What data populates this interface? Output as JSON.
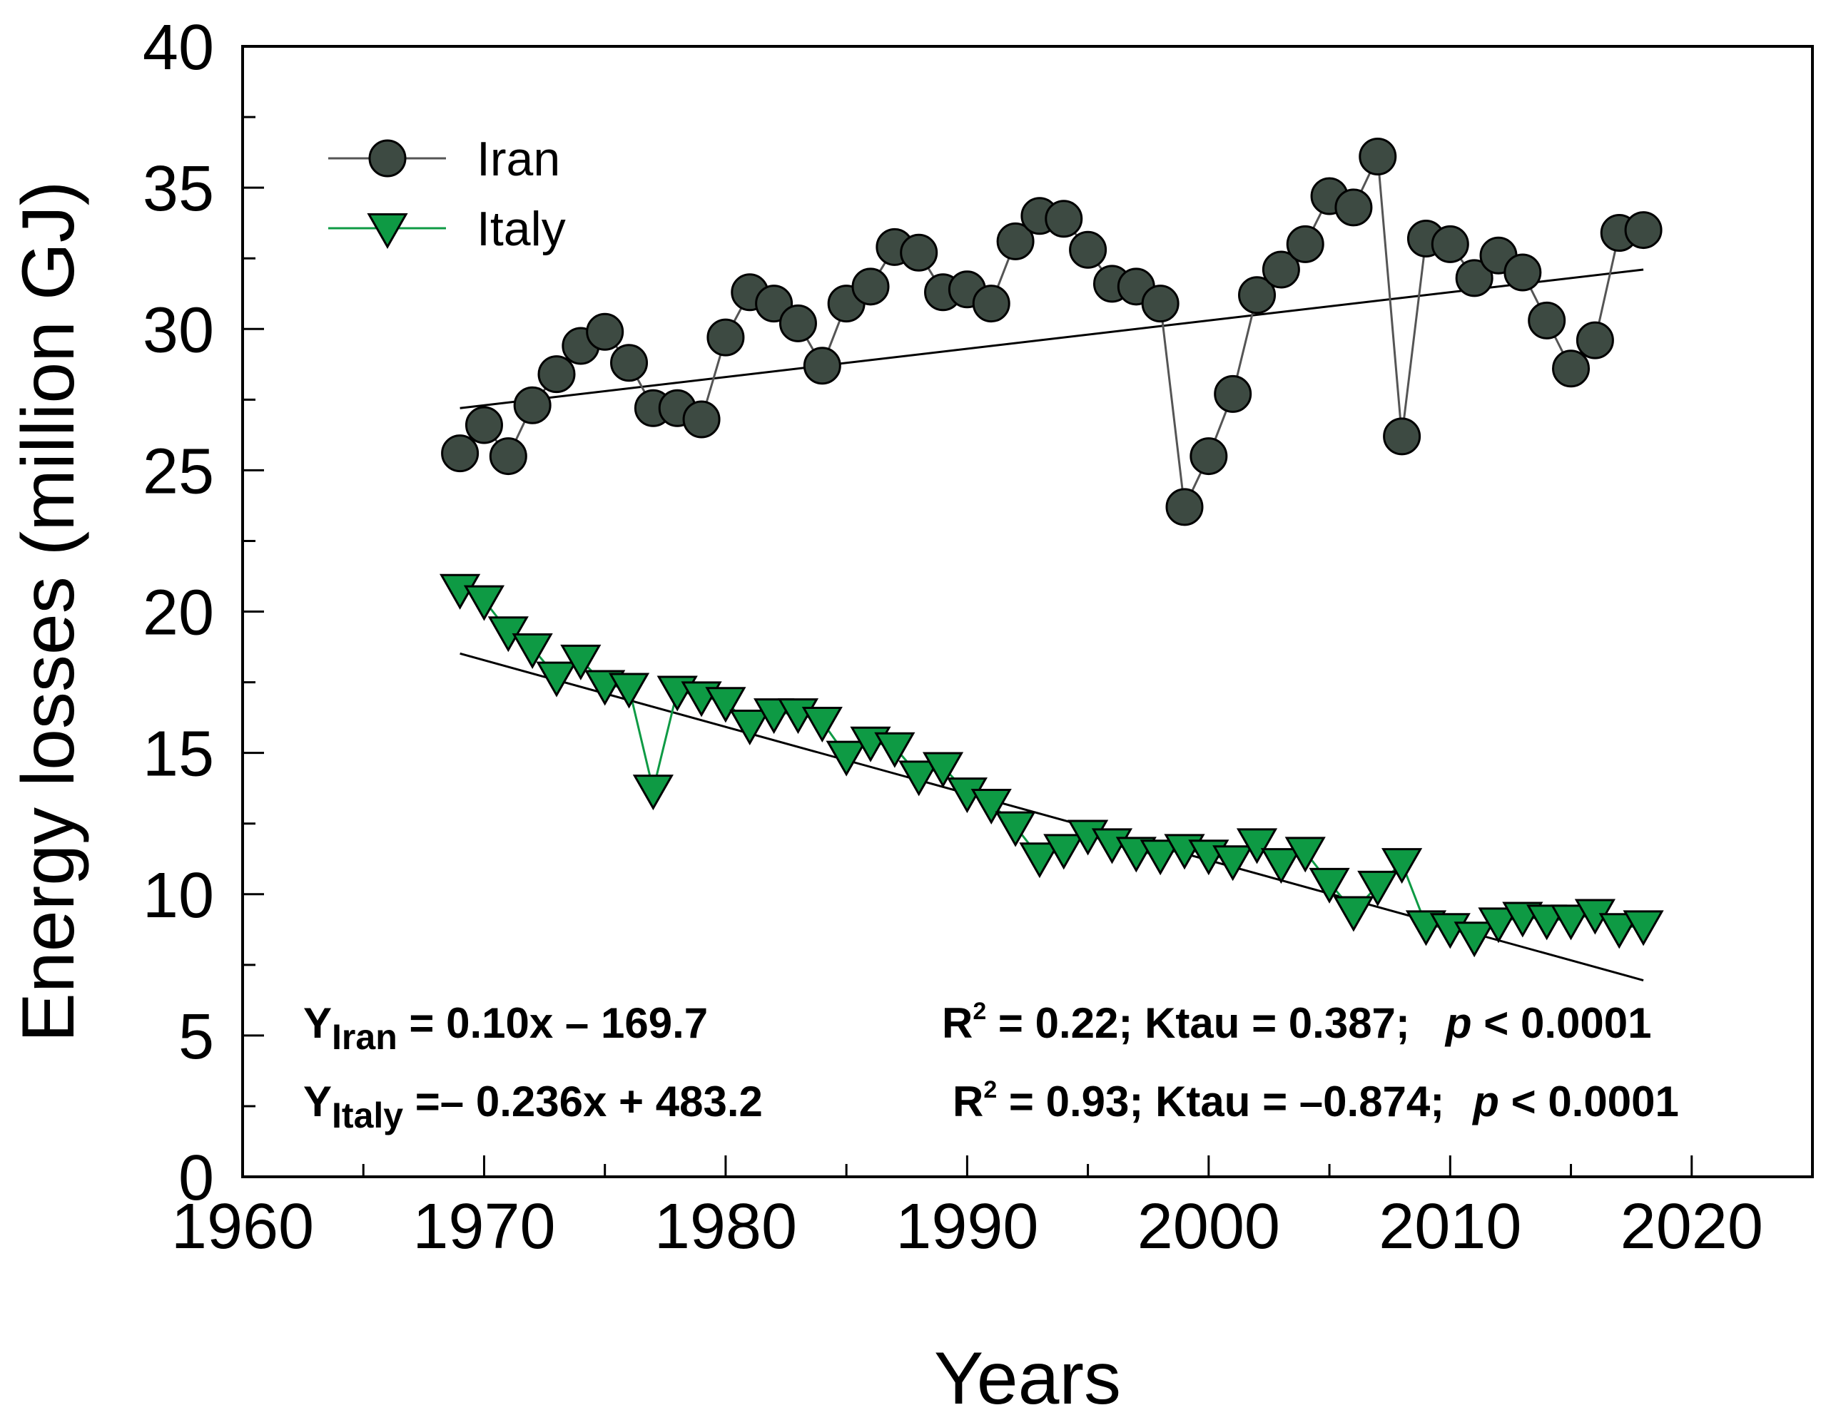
{
  "chart_data": {
    "type": "line",
    "title": "",
    "xlabel": "Years",
    "ylabel": "Energy losses (million GJ)",
    "xlim": [
      1960,
      2025
    ],
    "ylim": [
      0,
      40
    ],
    "xticks": [
      "1960",
      "1970",
      "1980",
      "1990",
      "2000",
      "2010",
      "2020"
    ],
    "yticks": [
      "0",
      "5",
      "10",
      "15",
      "20",
      "25",
      "30",
      "35",
      "40"
    ],
    "x_tick_values": [
      1960,
      1970,
      1980,
      1990,
      2000,
      2010,
      2020
    ],
    "y_tick_values": [
      0,
      5,
      10,
      15,
      20,
      25,
      30,
      35,
      40
    ],
    "grid": false,
    "legend_position": "top-left",
    "series": [
      {
        "name": "Iran",
        "marker": "circle",
        "color": "#3d4a42",
        "x": [
          1969,
          1970,
          1971,
          1972,
          1973,
          1974,
          1975,
          1976,
          1977,
          1978,
          1979,
          1980,
          1981,
          1982,
          1983,
          1984,
          1985,
          1986,
          1987,
          1988,
          1989,
          1990,
          1991,
          1992,
          1993,
          1994,
          1995,
          1996,
          1997,
          1998,
          1999,
          2000,
          2001,
          2002,
          2003,
          2004,
          2005,
          2006,
          2007,
          2008,
          2009,
          2010,
          2011,
          2012,
          2013,
          2014,
          2015,
          2016,
          2017,
          2018
        ],
        "values": [
          25.6,
          26.6,
          25.5,
          27.3,
          28.4,
          29.4,
          29.9,
          28.8,
          27.2,
          27.2,
          26.8,
          29.7,
          31.3,
          30.9,
          30.2,
          28.7,
          30.9,
          31.5,
          32.9,
          32.7,
          31.3,
          31.4,
          30.9,
          33.1,
          34.0,
          33.9,
          32.8,
          31.6,
          31.5,
          30.9,
          23.7,
          25.5,
          27.7,
          31.2,
          32.1,
          33.0,
          34.7,
          34.3,
          36.1,
          26.2,
          33.2,
          33.0,
          31.8,
          32.6,
          32.0,
          30.3,
          28.6,
          29.6,
          33.4,
          33.5
        ],
        "trend": {
          "slope": 0.1,
          "intercept": -169.7,
          "x_start": 1969,
          "x_end": 2018
        }
      },
      {
        "name": "Italy",
        "marker": "triangle-down",
        "color": "#0e9a44",
        "x": [
          1969,
          1970,
          1971,
          1972,
          1973,
          1974,
          1975,
          1976,
          1977,
          1978,
          1979,
          1980,
          1981,
          1982,
          1983,
          1984,
          1985,
          1986,
          1987,
          1988,
          1989,
          1990,
          1991,
          1992,
          1993,
          1994,
          1995,
          1996,
          1997,
          1998,
          1999,
          2000,
          2001,
          2002,
          2003,
          2004,
          2005,
          2006,
          2007,
          2008,
          2009,
          2010,
          2011,
          2012,
          2013,
          2014,
          2015,
          2016,
          2017,
          2018
        ],
        "values": [
          20.8,
          20.4,
          19.3,
          18.7,
          17.7,
          18.3,
          17.4,
          17.3,
          13.7,
          17.2,
          17.0,
          16.8,
          16.0,
          16.4,
          16.4,
          16.1,
          14.9,
          15.4,
          15.2,
          14.2,
          14.5,
          13.6,
          13.2,
          12.4,
          11.3,
          11.6,
          12.1,
          11.8,
          11.5,
          11.4,
          11.6,
          11.4,
          11.2,
          11.8,
          11.1,
          11.5,
          10.4,
          9.4,
          10.3,
          11.1,
          8.9,
          8.8,
          8.5,
          9.0,
          9.2,
          9.1,
          9.1,
          9.3,
          8.8,
          8.9
        ],
        "trend": {
          "slope": -0.236,
          "intercept": 483.2,
          "x_start": 1969,
          "x_end": 2018
        }
      }
    ],
    "annotations": {
      "iran_eq": {
        "lhs": "Y",
        "sub": "Iran",
        "rhs": " = 0.10x – 169.7"
      },
      "iran_stats": {
        "r": "R",
        "sup": "2",
        "stats": " = 0.22; Ktau = 0.387;",
        "p": "p",
        "ptext": " < 0.0001"
      },
      "italy_eq": {
        "lhs": "Y",
        "sub": "Italy",
        "rhs": " =– 0.236x + 483.2"
      },
      "italy_stats": {
        "r": "R",
        "sup": "2",
        "stats": " = 0.93; Ktau = –0.874;",
        "p": "p",
        "ptext": " < 0.0001"
      }
    }
  }
}
